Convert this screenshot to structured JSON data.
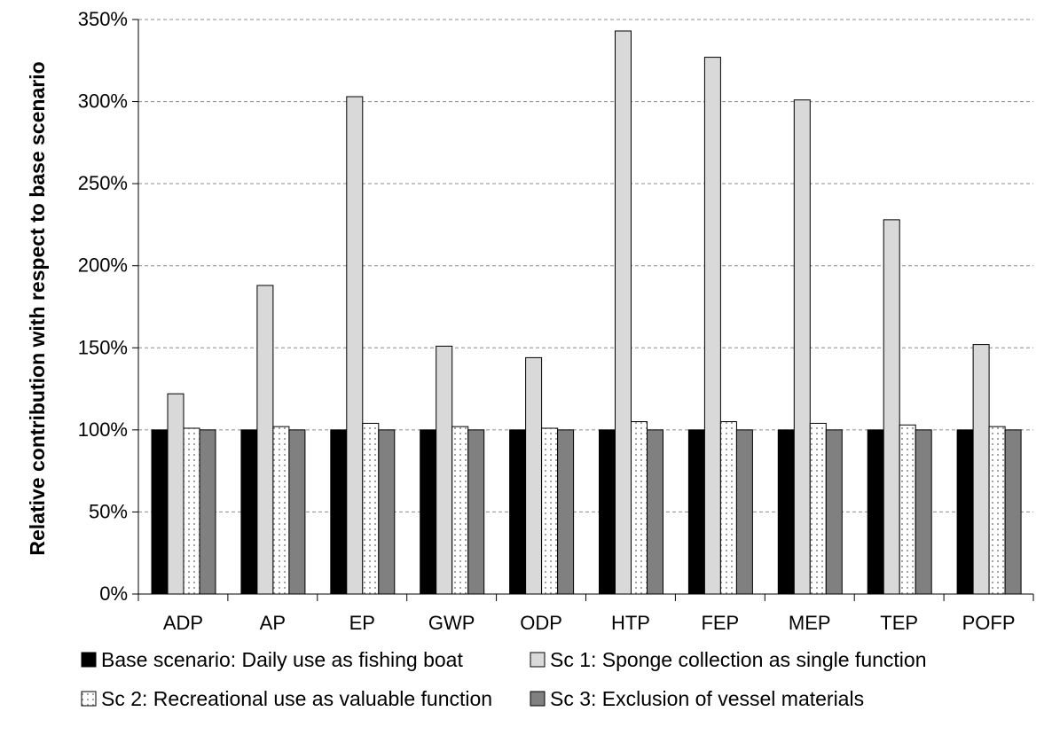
{
  "chart_data": {
    "type": "bar",
    "title": "",
    "xlabel": "",
    "ylabel": "Relative contribution with respect to base scenario",
    "ylim": [
      0,
      350
    ],
    "y_tick_step": 50,
    "y_unit": "%",
    "grid": "horizontal dashed",
    "legend_position": "bottom",
    "categories": [
      "ADP",
      "AP",
      "EP",
      "GWP",
      "ODP",
      "HTP",
      "FEP",
      "MEP",
      "TEP",
      "POFP"
    ],
    "series": [
      {
        "name": "Base scenario: Daily use as fishing boat",
        "fill": "#000000",
        "pattern": "solid",
        "values": [
          100,
          100,
          100,
          100,
          100,
          100,
          100,
          100,
          100,
          100
        ]
      },
      {
        "name": "Sc 1: Sponge collection as single function",
        "fill": "#d9d9d9",
        "pattern": "solid",
        "values": [
          122,
          188,
          303,
          151,
          144,
          343,
          327,
          301,
          228,
          152
        ]
      },
      {
        "name": "Sc 2: Recreational use as valuable function",
        "fill": "#ffffff",
        "pattern": "dots",
        "values": [
          101,
          102,
          104,
          102,
          101,
          105,
          105,
          104,
          103,
          102
        ]
      },
      {
        "name": "Sc 3: Exclusion of vessel materials",
        "fill": "#808080",
        "pattern": "solid",
        "values": [
          100,
          100,
          100,
          100,
          100,
          100,
          100,
          100,
          100,
          100
        ]
      }
    ]
  }
}
